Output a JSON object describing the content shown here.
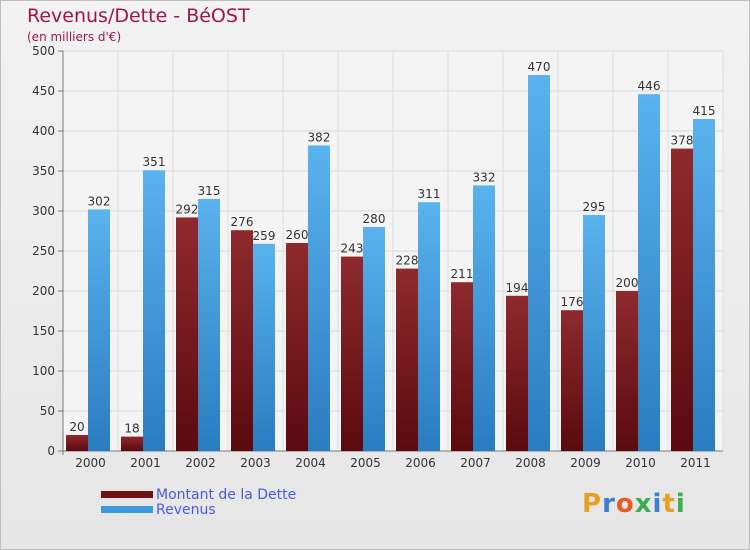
{
  "title": "Revenus/Dette - BéOST",
  "subtitle": "(en milliers d'€)",
  "chart_data": {
    "type": "bar",
    "categories": [
      "2000",
      "2001",
      "2002",
      "2003",
      "2004",
      "2005",
      "2006",
      "2007",
      "2008",
      "2009",
      "2010",
      "2011"
    ],
    "series": [
      {
        "name": "Montant de la Dette",
        "values": [
          20,
          18,
          292,
          276,
          260,
          243,
          228,
          211,
          194,
          176,
          200,
          378
        ],
        "color": "#7a1a1e"
      },
      {
        "name": "Revenus",
        "values": [
          302,
          351,
          315,
          259,
          382,
          280,
          311,
          332,
          470,
          295,
          446,
          415
        ],
        "color": "#4aa3e6"
      }
    ],
    "ylim": [
      0,
      500
    ],
    "yticks": [
      0,
      50,
      100,
      150,
      200,
      250,
      300,
      350,
      400,
      450,
      500
    ],
    "grid": true,
    "legend_position": "bottom-left"
  },
  "logo": {
    "text": "Proxiti",
    "colors": [
      "#e8a020",
      "#3a7fd0",
      "#e85a20",
      "#3ab04a",
      "#3a7fd0",
      "#e8a020",
      "#3ab04a"
    ]
  }
}
